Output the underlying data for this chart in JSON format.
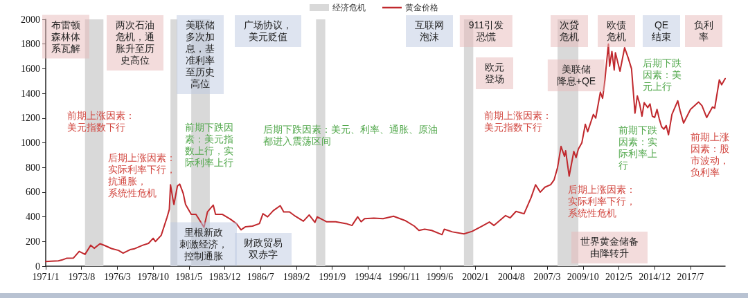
{
  "chart_data": {
    "type": "line",
    "x": [
      "1971-01",
      "1971-06",
      "1971-12",
      "1972-03",
      "1972-07",
      "1973-01",
      "1973-06",
      "1973-11",
      "1974-04",
      "1974-07",
      "1974-12",
      "1975-04",
      "1975-10",
      "1976-04",
      "1976-08",
      "1977-02",
      "1977-06",
      "1978-01",
      "1978-06",
      "1978-10",
      "1978-12",
      "1979-05",
      "1979-10",
      "1979-12",
      "1980-01",
      "1980-03",
      "1980-04",
      "1980-07",
      "1980-09",
      "1980-12",
      "1981-02",
      "1981-07",
      "1981-11",
      "1982-02",
      "1982-06",
      "1982-09",
      "1983-02",
      "1983-04",
      "1983-10",
      "1984-05",
      "1984-10",
      "1985-02",
      "1985-06",
      "1985-12",
      "1986-06",
      "1986-09",
      "1987-01",
      "1987-06",
      "1987-12",
      "1988-03",
      "1988-08",
      "1989-01",
      "1989-08",
      "1990-01",
      "1990-06",
      "1990-08",
      "1991-04",
      "1991-12",
      "1992-09",
      "1993-02",
      "1993-07",
      "1993-10",
      "1994-01",
      "1994-09",
      "1995-05",
      "1996-02",
      "1996-12",
      "1997-08",
      "1997-12",
      "1998-05",
      "1998-11",
      "1999-08",
      "1999-10",
      "2000-05",
      "2001-03",
      "2001-10",
      "2002-06",
      "2003-01",
      "2003-05",
      "2004-03",
      "2004-07",
      "2004-12",
      "2005-07",
      "2006-01",
      "2006-05",
      "2006-09",
      "2007-01",
      "2007-06",
      "2007-09",
      "2007-12",
      "2008-03",
      "2008-06",
      "2008-07",
      "2008-10",
      "2009-02",
      "2009-04",
      "2009-06",
      "2009-09",
      "2009-12",
      "2010-02",
      "2010-07",
      "2010-09",
      "2011-01",
      "2011-03",
      "2011-05",
      "2011-08",
      "2011-09",
      "2011-11",
      "2012-01",
      "2012-02",
      "2012-06",
      "2012-10",
      "2013-01",
      "2013-04",
      "2013-07",
      "2013-09",
      "2013-11",
      "2014-01",
      "2014-03",
      "2014-06",
      "2014-08",
      "2014-10",
      "2014-12",
      "2015-02",
      "2015-04",
      "2015-06",
      "2015-08",
      "2015-10",
      "2015-12",
      "2016-03",
      "2016-08",
      "2016-10",
      "2017-01",
      "2017-07",
      "2018-02",
      "2018-05",
      "2018-09",
      "2019-02",
      "2019-04",
      "2019-08",
      "2019-10",
      "2020-01"
    ],
    "series": [
      {
        "name": "黄金价格",
        "color": "#c0282d",
        "values": [
          38,
          40,
          43,
          50,
          64,
          66,
          120,
          96,
          170,
          145,
          182,
          168,
          143,
          128,
          106,
          134,
          142,
          170,
          185,
          226,
          200,
          250,
          395,
          460,
          660,
          550,
          500,
          650,
          665,
          590,
          500,
          420,
          420,
          375,
          315,
          440,
          495,
          420,
          420,
          380,
          345,
          295,
          320,
          325,
          345,
          425,
          400,
          450,
          490,
          440,
          440,
          405,
          365,
          415,
          355,
          400,
          360,
          360,
          345,
          330,
          400,
          360,
          385,
          390,
          385,
          405,
          370,
          325,
          290,
          300,
          290,
          256,
          300,
          278,
          262,
          282,
          322,
          358,
          330,
          410,
          392,
          444,
          425,
          555,
          660,
          600,
          640,
          660,
          700,
          800,
          970,
          890,
          935,
          730,
          930,
          880,
          950,
          1000,
          1150,
          1090,
          1230,
          1200,
          1410,
          1360,
          1510,
          1800,
          1620,
          1740,
          1590,
          1730,
          1580,
          1770,
          1690,
          1600,
          1240,
          1380,
          1315,
          1215,
          1325,
          1285,
          1315,
          1215,
          1205,
          1270,
          1195,
          1130,
          1110,
          1140,
          1065,
          1230,
          1340,
          1260,
          1160,
          1270,
          1330,
          1300,
          1205,
          1290,
          1280,
          1510,
          1470,
          1520
        ]
      }
    ],
    "xlim": [
      "1971-01",
      "2020-01"
    ],
    "xticks": [
      {
        "value": "1971-01",
        "label": "1971/1"
      },
      {
        "value": "1973-08",
        "label": "1973/8"
      },
      {
        "value": "1976-03",
        "label": "1976/3"
      },
      {
        "value": "1978-10",
        "label": "1978/10"
      },
      {
        "value": "1981-05",
        "label": "1981/5"
      },
      {
        "value": "1983-12",
        "label": "1983/12"
      },
      {
        "value": "1986-07",
        "label": "1986/7"
      },
      {
        "value": "1989-02",
        "label": "1989/2"
      },
      {
        "value": "1991-09",
        "label": "1991/9"
      },
      {
        "value": "1994-04",
        "label": "1994/4"
      },
      {
        "value": "1996-11",
        "label": "1996/11"
      },
      {
        "value": "1999-06",
        "label": "1999/6"
      },
      {
        "value": "2002-01",
        "label": "2002/1"
      },
      {
        "value": "2004-08",
        "label": "2004/8"
      },
      {
        "value": "2007-03",
        "label": "2007/3"
      },
      {
        "value": "2009-10",
        "label": "2009/10"
      },
      {
        "value": "2012-05",
        "label": "2012/5"
      },
      {
        "value": "2014-12",
        "label": "2014/12"
      },
      {
        "value": "2017-07",
        "label": "2017/7"
      }
    ],
    "ylim": [
      0,
      2000
    ],
    "yticks": [
      0,
      200,
      400,
      600,
      800,
      1000,
      1200,
      1400,
      1600,
      1800,
      2000
    ],
    "bands": [
      {
        "axis": "x",
        "from": "1973-11",
        "to": "1975-03",
        "label": "经济危机",
        "color": "#d9d9d9"
      },
      {
        "axis": "x",
        "from": "1980-01",
        "to": "1980-07",
        "color": "#d9d9d9"
      },
      {
        "axis": "x",
        "from": "1981-07",
        "to": "1982-11",
        "color": "#d9d9d9"
      },
      {
        "axis": "x",
        "from": "1990-07",
        "to": "1991-03",
        "color": "#d9d9d9"
      },
      {
        "axis": "x",
        "from": "2001-03",
        "to": "2001-11",
        "color": "#d9d9d9"
      },
      {
        "axis": "x",
        "from": "2007-12",
        "to": "2009-06",
        "color": "#d9d9d9"
      }
    ],
    "annotations": [
      "布雷顿森林体系瓦解",
      "两次石油危机，通胀升至历史高位",
      "美联储多次加息，基准利率至历史高位",
      "广场协议，美元贬值",
      "互联网泡沫",
      "911引发恐慌",
      "欧元登场",
      "次贷危机",
      "美联储降息+QE",
      "欧债危机",
      "QE结束",
      "负利率",
      "前期上涨因素：美元指数下行",
      "后期上涨因素：实际利率下行，抗通胀，系统性危机",
      "前期下跌因素：美元指数上行，实际利率上行",
      "后期下跌因素：美元、利率、通胀、原油都进入震荡区间",
      "里根新政刺激经济，控制通胀",
      "财政贸易双赤字",
      "前期上涨因素：美元指数下行",
      "后期上涨因素：实际利率下行，系统性危机",
      "世界黄金储备由降转升",
      "后期下跌因素：美元上行",
      "前期下跌因素：实际利率上行",
      "前期上涨因素：股市波动，负利率"
    ],
    "legend": "top"
  }
}
